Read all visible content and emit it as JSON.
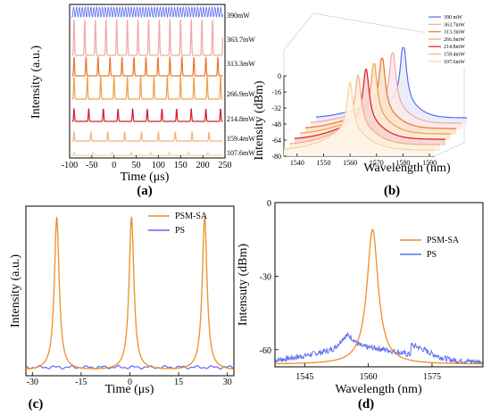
{
  "chart_data": [
    {
      "panel": "a",
      "type": "line",
      "panel_label": "(a)",
      "xlabel": "Time (μs)",
      "ylabel": "Intensity (a.u.)",
      "xlim": [
        -100,
        250
      ],
      "xticks": [
        "-100",
        "-50",
        "0",
        "50",
        "100",
        "150",
        "200",
        "250"
      ],
      "series": [
        {
          "name": "390mW",
          "color": "#5a6cf0",
          "period_us": 6.5
        },
        {
          "name": "363.7mW",
          "color": "#f4a6a8",
          "period_us": 24
        },
        {
          "name": "313.3mW",
          "color": "#e8772a",
          "period_us": 27
        },
        {
          "name": "266.9mW",
          "color": "#f0a04a",
          "period_us": 30
        },
        {
          "name": "214.8mW",
          "color": "#d81c2a",
          "period_us": 33
        },
        {
          "name": "159.4mW",
          "color": "#f2b07a",
          "period_us": 38
        },
        {
          "name": "107.6mW",
          "color": "#f6d3a0",
          "period_us": 43
        }
      ]
    },
    {
      "panel": "b",
      "type": "line",
      "panel_label": "(b)",
      "xlabel": "Wavelength (nm)",
      "ylabel": "Intensity (dBm)",
      "xticks": [
        "1540",
        "1550",
        "1560",
        "1570",
        "1580",
        "1590"
      ],
      "yticks": [
        "0",
        "-16",
        "-32",
        "-48",
        "-64",
        "-80"
      ],
      "ylim": [
        -80,
        0
      ],
      "series": [
        {
          "name": "390 mW",
          "color": "#5a6cf0",
          "peak_nm": 1568
        },
        {
          "name": "363.7mW",
          "color": "#f4a6a8",
          "peak_nm": 1566
        },
        {
          "name": "313.3mW",
          "color": "#e8772a",
          "peak_nm": 1564
        },
        {
          "name": "266.9mW",
          "color": "#f0a04a",
          "peak_nm": 1563
        },
        {
          "name": "214.8mW",
          "color": "#d81c2a",
          "peak_nm": 1562
        },
        {
          "name": "159.4mW",
          "color": "#f2b07a",
          "peak_nm": 1561
        },
        {
          "name": "107.6mW",
          "color": "#f6d3a0",
          "peak_nm": 1560
        }
      ]
    },
    {
      "panel": "c",
      "type": "line",
      "panel_label": "(c)",
      "xlabel": "Time (μs)",
      "ylabel": "Intensity (a.u.)",
      "xlim": [
        -32,
        32
      ],
      "xticks": [
        "-30",
        "-15",
        "0",
        "15",
        "30"
      ],
      "series": [
        {
          "name": "PSM-SA",
          "color": "#f28c28",
          "pulse_centers_us": [
            -22.5,
            0.5,
            23
          ],
          "pulse_height": 0.93
        },
        {
          "name": "PS",
          "color": "#5a6cf0",
          "level": 0.05
        }
      ]
    },
    {
      "panel": "d",
      "type": "line",
      "panel_label": "(d)",
      "xlabel": "Wavelength (nm)",
      "ylabel": "Intensuty (dBm)",
      "xlim": [
        1538,
        1587
      ],
      "ylim": [
        -67,
        0
      ],
      "xticks": [
        "1545",
        "1560",
        "1575"
      ],
      "yticks": [
        "0",
        "-30",
        "-60"
      ],
      "series": [
        {
          "name": "PSM-SA",
          "color": "#f28c28",
          "peak_nm": 1561,
          "peak_dbm": -11,
          "floor_dbm": -66
        },
        {
          "name": "PS",
          "color": "#5a6cf0",
          "peak_nm": 1555,
          "peak_dbm": -54,
          "floor_dbm": -65
        }
      ]
    }
  ]
}
